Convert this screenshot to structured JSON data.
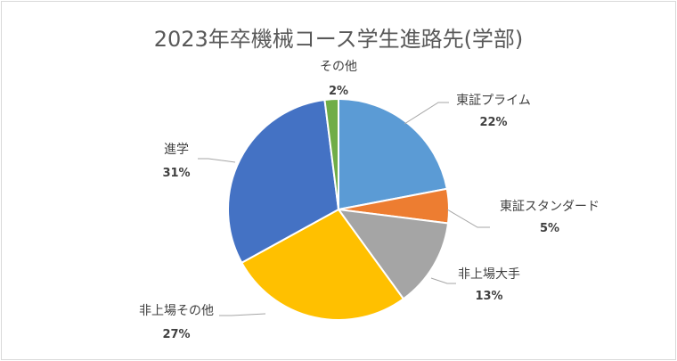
{
  "chart_data": {
    "type": "pie",
    "title": "2023年卒機械コース学生進路先(学部)",
    "slices": [
      {
        "label": "東証プライム",
        "value": 22,
        "display": "22%",
        "color": "#5B9BD5"
      },
      {
        "label": "東証スタンダード",
        "value": 5,
        "display": "5%",
        "color": "#ED7D31"
      },
      {
        "label": "非上場大手",
        "value": 13,
        "display": "13%",
        "color": "#A5A5A5"
      },
      {
        "label": "非上場その他",
        "value": 27,
        "display": "27%",
        "color": "#FFC000"
      },
      {
        "label": "進学",
        "value": 31,
        "display": "31%",
        "color": "#4472C4"
      },
      {
        "label": "その他",
        "value": 2,
        "display": "2%",
        "color": "#70AD47"
      }
    ],
    "legend": "none",
    "start_angle": "12 o'clock, clockwise"
  }
}
